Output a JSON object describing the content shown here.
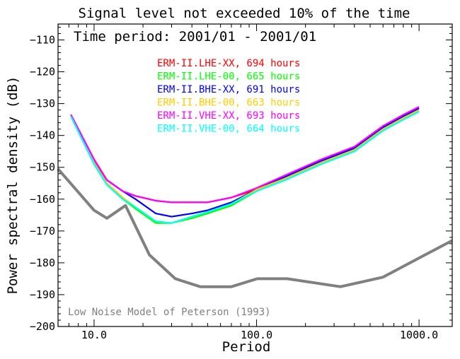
{
  "chart_data": {
    "type": "line",
    "title": "Signal level not exceeded 10% of the time",
    "subtitle": "Time period: 2001/01 - 2001/01",
    "xlabel": "Period",
    "ylabel": "Power spectral density (dB)",
    "x_scale": "log",
    "xlim": [
      6.0,
      1600.0
    ],
    "ylim": [
      -200,
      -105
    ],
    "x_ticks": [
      {
        "value": 10,
        "label": "10.0"
      },
      {
        "value": 100,
        "label": "100.0"
      },
      {
        "value": 1000,
        "label": "1000.0"
      }
    ],
    "y_ticks": [
      {
        "value": -110,
        "label": "−110"
      },
      {
        "value": -120,
        "label": "−120"
      },
      {
        "value": -130,
        "label": "−130"
      },
      {
        "value": -140,
        "label": "−140"
      },
      {
        "value": -150,
        "label": "−150"
      },
      {
        "value": -160,
        "label": "−160"
      },
      {
        "value": -170,
        "label": "−170"
      },
      {
        "value": -180,
        "label": "−180"
      },
      {
        "value": -190,
        "label": "−190"
      },
      {
        "value": -200,
        "label": "−200"
      }
    ],
    "legend_placement": "top-center",
    "series": [
      {
        "name": "ERM-II.LHE-XX, 694 hours",
        "color": "#ff0000",
        "x": [
          7.2,
          10,
          12,
          15,
          18,
          24,
          30,
          40,
          50,
          70,
          100,
          150,
          250,
          400,
          600,
          800,
          1000
        ],
        "y": [
          -133.5,
          -147.5,
          -154,
          -157.5,
          -159,
          -160.5,
          -161,
          -161,
          -161,
          -159.5,
          -157,
          -153,
          -148,
          -144,
          -137.5,
          -134,
          -131.5
        ]
      },
      {
        "name": "ERM-II.LHE-00, 665 hours",
        "color": "#00ff00",
        "x": [
          7.2,
          10,
          12,
          15,
          18,
          24,
          30,
          40,
          50,
          70,
          100,
          150,
          250,
          400,
          600,
          800,
          1000
        ],
        "y": [
          -134,
          -149,
          -155.5,
          -160,
          -163,
          -167.5,
          -167.5,
          -166,
          -164.5,
          -162,
          -157.5,
          -154,
          -149,
          -145,
          -138.5,
          -135,
          -132.5
        ]
      },
      {
        "name": "ERM-II.BHE-XX, 691 hours",
        "color": "#0000ff",
        "x": [
          7.2,
          10,
          12,
          15,
          18,
          24,
          30,
          40,
          50,
          70,
          100,
          150,
          250,
          400,
          600,
          800,
          1000
        ],
        "y": [
          -133.5,
          -148,
          -154,
          -157.5,
          -160,
          -164.5,
          -165.5,
          -164.5,
          -163.5,
          -161,
          -157,
          -153,
          -148,
          -144,
          -137.5,
          -134,
          -131.5
        ]
      },
      {
        "name": "ERM-II.BHE-00, 663 hours",
        "color": "#ffcc00",
        "x": [
          7.2,
          10,
          12,
          15,
          18,
          24,
          30,
          40,
          50,
          70,
          100,
          150,
          250,
          400,
          600,
          800,
          1000
        ],
        "y": [
          -134,
          -148.5,
          -155,
          -159.5,
          -162.5,
          -167,
          -167.5,
          -165.5,
          -164,
          -161.5,
          -157,
          -153.5,
          -148.5,
          -144.5,
          -138,
          -134.5,
          -132
        ]
      },
      {
        "name": "ERM-II.VHE-XX, 693 hours",
        "color": "#ff00ff",
        "x": [
          7.2,
          10,
          12,
          15,
          18,
          24,
          30,
          40,
          50,
          70,
          100,
          150,
          250,
          400,
          600,
          800,
          1000
        ],
        "y": [
          -133.5,
          -147.5,
          -154,
          -157.5,
          -159,
          -160.5,
          -161,
          -161,
          -161,
          -159.5,
          -156.5,
          -152.5,
          -147.5,
          -143.5,
          -137,
          -133.5,
          -131
        ]
      },
      {
        "name": "ERM-II.VHE-00, 664 hours",
        "color": "#00ffff",
        "x": [
          7.2,
          10,
          12,
          15,
          18,
          24,
          30,
          40,
          50,
          70,
          100,
          150,
          250,
          400,
          600,
          800,
          1000
        ],
        "y": [
          -134,
          -149,
          -155.5,
          -160,
          -162.5,
          -167,
          -167.5,
          -165.5,
          -164,
          -161.5,
          -157.5,
          -154,
          -149,
          -145,
          -138.5,
          -135,
          -132.5
        ]
      }
    ],
    "reference_curve": {
      "name": "Low Noise Model of Peterson (1993)",
      "color": "#808080",
      "x": [
        6.0,
        10.0,
        12.0,
        15.6,
        21.9,
        31.6,
        45.0,
        70.0,
        101.0,
        154.0,
        328.0,
        600.0,
        1000.0,
        1600.0
      ],
      "y": [
        -150.5,
        -163.5,
        -166.0,
        -162.0,
        -177.5,
        -185.0,
        -187.5,
        -187.5,
        -185.0,
        -185.0,
        -187.5,
        -184.5,
        -178.5,
        -173.0
      ]
    }
  }
}
